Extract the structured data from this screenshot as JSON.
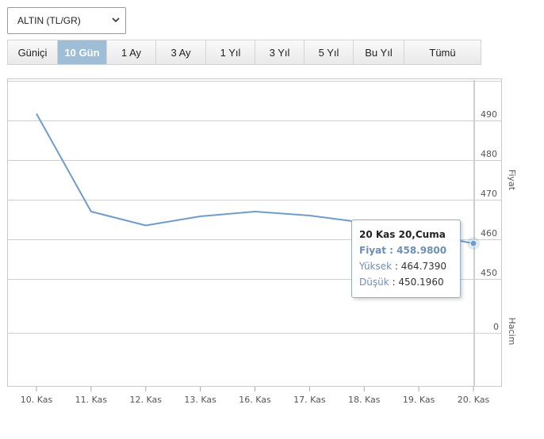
{
  "selector": {
    "value": "ALTIN (TL/GR)",
    "icon": "chevron-down-icon"
  },
  "tabs": [
    {
      "label": "Güniçi",
      "width": 63
    },
    {
      "label": "10 Gün",
      "width": 62,
      "active": true
    },
    {
      "label": "1 Ay",
      "width": 62
    },
    {
      "label": "3 Ay",
      "width": 63
    },
    {
      "label": "1 Yıl",
      "width": 62
    },
    {
      "label": "3 Yıl",
      "width": 62
    },
    {
      "label": "5 Yıl",
      "width": 62
    },
    {
      "label": "Bu Yıl",
      "width": 64
    },
    {
      "label": "Tümü",
      "width": 96
    }
  ],
  "chart_data": {
    "type": "line",
    "x": [
      "10. Kas",
      "11. Kas",
      "12. Kas",
      "13. Kas",
      "16. Kas",
      "17. Kas",
      "18. Kas",
      "19. Kas",
      "20. Kas"
    ],
    "series": [
      {
        "values": [
          491.7,
          467.0,
          463.5,
          465.8,
          467.0,
          466.0,
          464.2,
          null,
          458.98
        ]
      }
    ],
    "price_axis": {
      "label": "Fiyat",
      "ticks": [
        450,
        460,
        470,
        480,
        490
      ],
      "range": [
        450,
        500
      ],
      "position": "right"
    },
    "volume_axis": {
      "label": "Hacim",
      "ticks": [
        0
      ],
      "position": "right"
    },
    "grid": true,
    "line_color": "#6e9ccb",
    "tooltip": {
      "title": "20 Kas 20,Cuma",
      "rows": [
        {
          "label": "Fiyat",
          "value": "458.9800"
        },
        {
          "label": "Yüksek",
          "value": "464.7390"
        },
        {
          "label": "Düşük",
          "value": "450.1960"
        }
      ]
    }
  }
}
